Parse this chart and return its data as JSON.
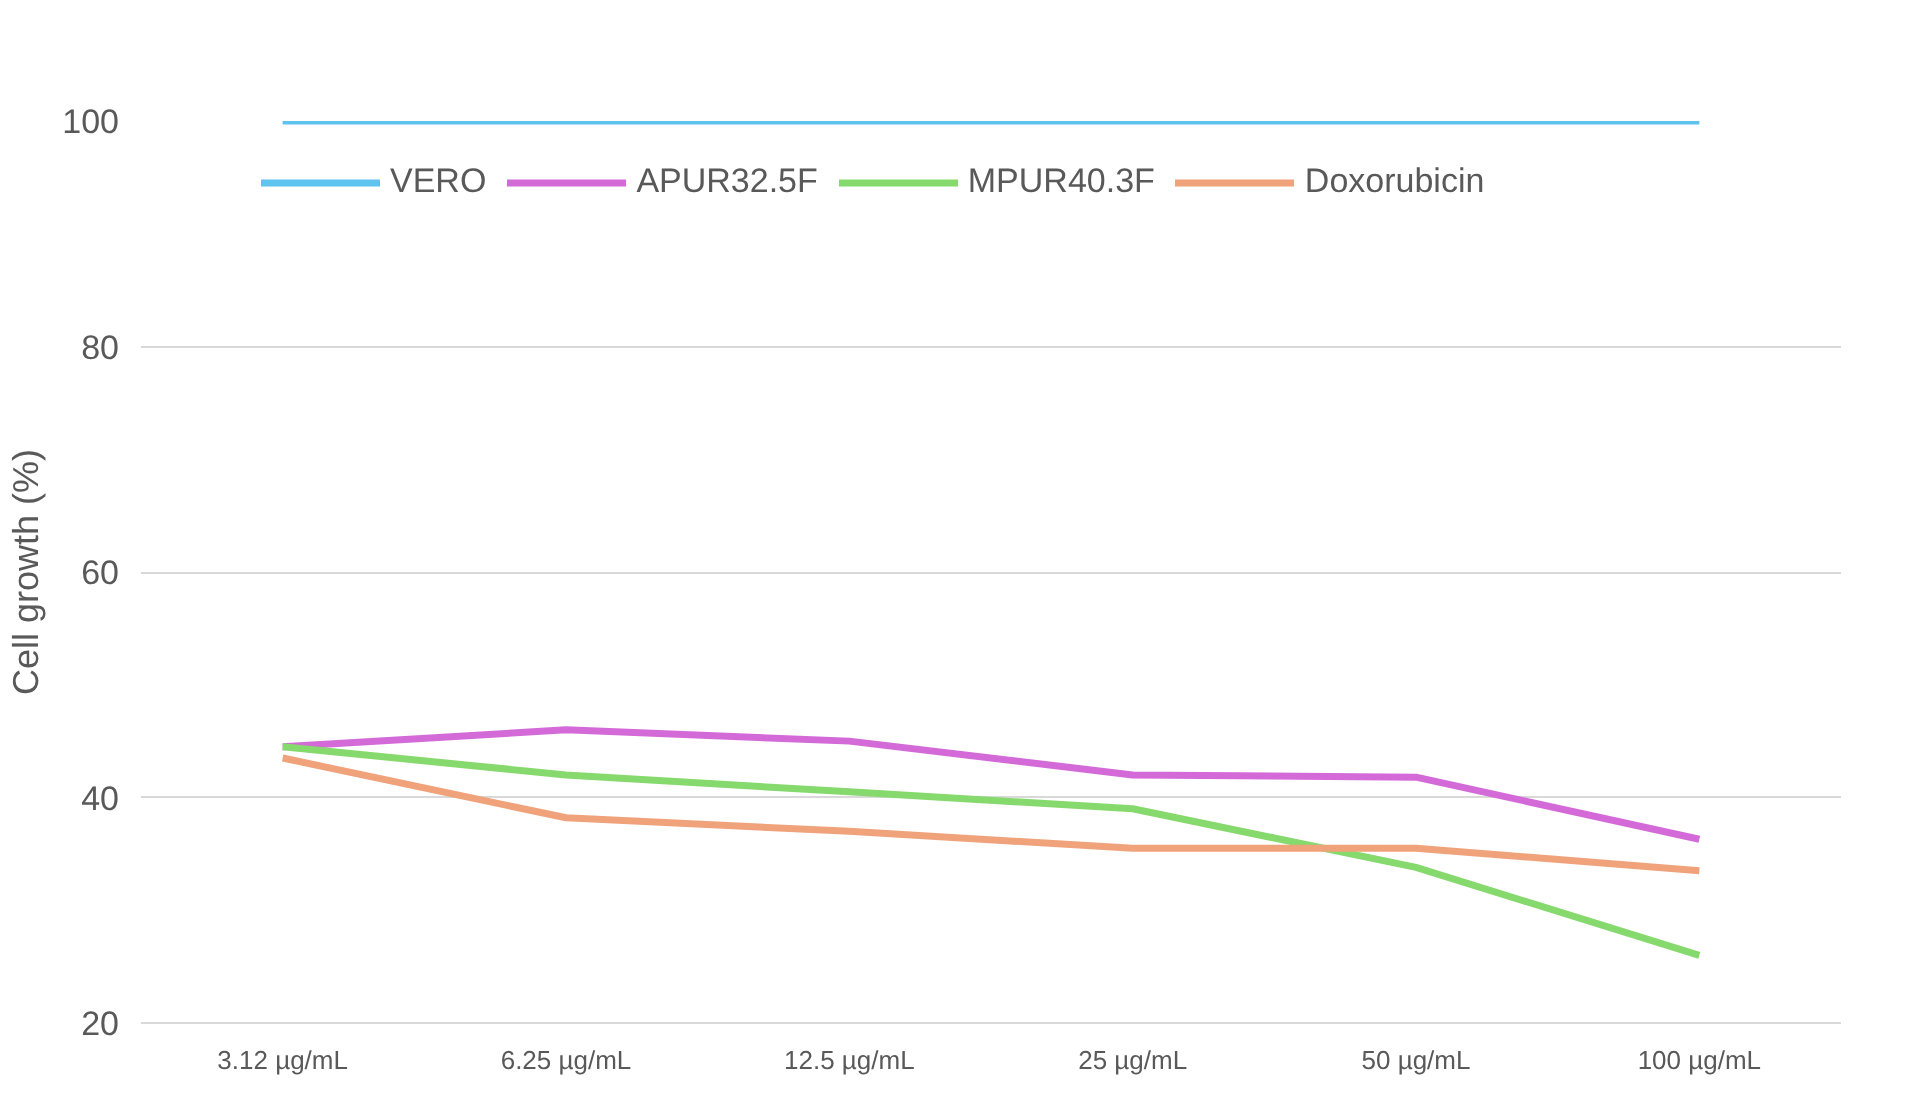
{
  "chart_data": {
    "type": "line",
    "ylabel": "Cell growth (%)",
    "categories": [
      "3.12 µg/mL",
      "6.25 µg/mL",
      "12.5 µg/mL",
      "25 µg/mL",
      "50 µg/mL",
      "100 µg/mL"
    ],
    "series": [
      {
        "name": "VERO",
        "color": "#5ec3ee",
        "values": [
          100,
          100,
          100,
          100,
          100,
          100
        ]
      },
      {
        "name": "APUR32.5F",
        "color": "#d36ad8",
        "values": [
          44.5,
          46,
          45,
          42,
          41.8,
          36.3
        ]
      },
      {
        "name": "MPUR40.3F",
        "color": "#86d96c",
        "values": [
          44.5,
          42,
          40.5,
          39,
          33.8,
          26
        ]
      },
      {
        "name": "Doxorubicin",
        "color": "#f0a27a",
        "values": [
          43.5,
          38.2,
          37,
          35.5,
          35.5,
          33.5
        ]
      }
    ],
    "ylim": [
      20,
      100
    ],
    "yticks": [
      20,
      40,
      60,
      80,
      100
    ],
    "grid": "y",
    "legend": "top",
    "line_style": "solid"
  }
}
